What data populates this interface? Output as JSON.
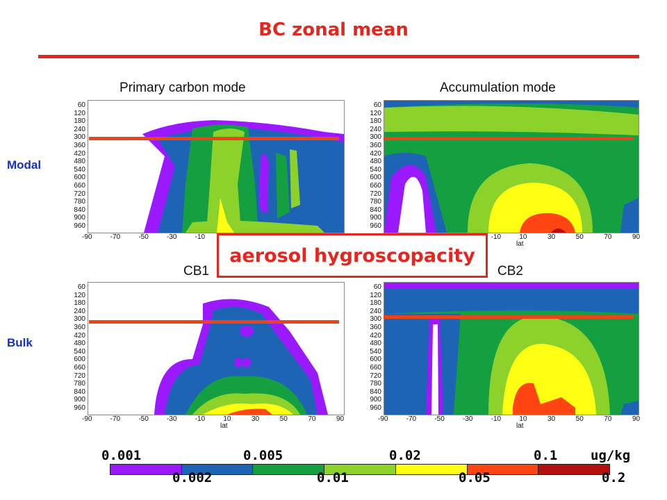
{
  "title": "BC zonal mean",
  "col_titles": [
    "Primary carbon mode",
    "Accumulation mode"
  ],
  "row_labels": [
    "Modal",
    "Bulk"
  ],
  "panel_captions": [
    "CB1",
    "CB2"
  ],
  "callout": "aerosol hygroscopacity",
  "y_ticks": [
    "60",
    "120",
    "180",
    "240",
    "300",
    "360",
    "420",
    "480",
    "540",
    "600",
    "660",
    "720",
    "780",
    "840",
    "900",
    "960"
  ],
  "x_ticks": [
    "-90",
    "-70",
    "-50",
    "-30",
    "-10",
    "10",
    "30",
    "50",
    "70",
    "90"
  ],
  "x_label": "lat",
  "colorbar": {
    "top_labels": [
      "0.001",
      "0.005",
      "0.02",
      "0.1"
    ],
    "bottom_labels": [
      "0.002",
      "0.01",
      "0.05",
      "0.2"
    ],
    "unit": "ug/kg",
    "colors": [
      "#9b19ff",
      "#1e64b4",
      "#14a040",
      "#8cd22a",
      "#ffff14",
      "#ff4612",
      "#b41010"
    ]
  },
  "colors": {
    "title": "#e5261f",
    "row_label": "#1530c8",
    "marker_line": "#e8451c"
  }
}
